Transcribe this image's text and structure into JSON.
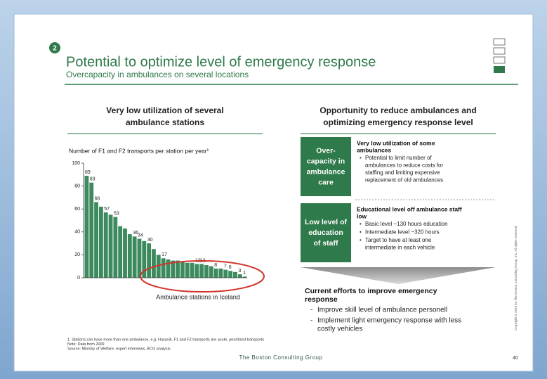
{
  "slide": {
    "number": "2",
    "title": "Potential to optimize level of emergency response",
    "subtitle": "Overcapacity in ambulances on several locations",
    "left_heading": [
      "Very low utilization of several",
      "ambulance stations"
    ],
    "right_heading": [
      "Opportunity to reduce ambulances and",
      "optimizing emergency response level"
    ],
    "boxes": [
      {
        "label": [
          "Over-",
          "capacity in",
          "ambulance",
          "care"
        ],
        "heading": [
          "Very low utilization of some",
          "ambulances"
        ],
        "bullets": [
          [
            "Potential to limit number of",
            "ambulances to reduce costs for",
            "staffing and limiting expensive",
            "replacement of old ambulances"
          ]
        ]
      },
      {
        "label": [
          "Low level of",
          "education",
          "of staff"
        ],
        "heading": [
          "Educational level off ambulance staff",
          "low"
        ],
        "bullets": [
          [
            "Basic level ~130 hours education"
          ],
          [
            "Intermediate level ~320 hours"
          ],
          [
            "Target to have at least one",
            "intermediate in each vehicle"
          ]
        ]
      }
    ],
    "efforts_heading": [
      "Current efforts to improve emergency",
      "response"
    ],
    "efforts_bullets": [
      [
        "Improve skill level of ambulance personell"
      ],
      [
        "Implement light emergency response with less",
        "costly vehicles"
      ]
    ],
    "footnotes": [
      "1. Stations can have more than one ambulance, e.g. Husavik. F1 and F2 transports are acute, prioritized transports",
      "Note: Data from 2009",
      "Source: Ministry of Welfare, expert interviews, BCG analysis"
    ],
    "logo": "The Boston Consulting Group",
    "page_number": "40",
    "copyright": "Copyright © 2010 by The Boston Consulting Group, Inc. All rights reserved."
  },
  "chart_data": {
    "type": "bar",
    "title": "Number of F1 and F2 transports per station per year¹",
    "x_label": "Ambulance stations in Iceland",
    "values": [
      89,
      83,
      66,
      62,
      57,
      55,
      53,
      45,
      43,
      38,
      36,
      34,
      32,
      30,
      25,
      20,
      17,
      16,
      15,
      15,
      14,
      13,
      13,
      12,
      12,
      11,
      10,
      8,
      8,
      7,
      6,
      5,
      3,
      1
    ],
    "value_labels": [
      "89",
      "83",
      "66",
      null,
      "57",
      null,
      "53",
      null,
      null,
      null,
      "36",
      "34",
      null,
      "30",
      null,
      null,
      "17",
      null,
      null,
      null,
      null,
      null,
      null,
      "12",
      "12",
      null,
      null,
      "8",
      null,
      "7",
      "6",
      null,
      "3",
      "1"
    ],
    "color": "#3d8a5f",
    "ylim": [
      0,
      100
    ],
    "yticks": [
      0,
      20,
      40,
      60,
      80,
      100
    ]
  }
}
